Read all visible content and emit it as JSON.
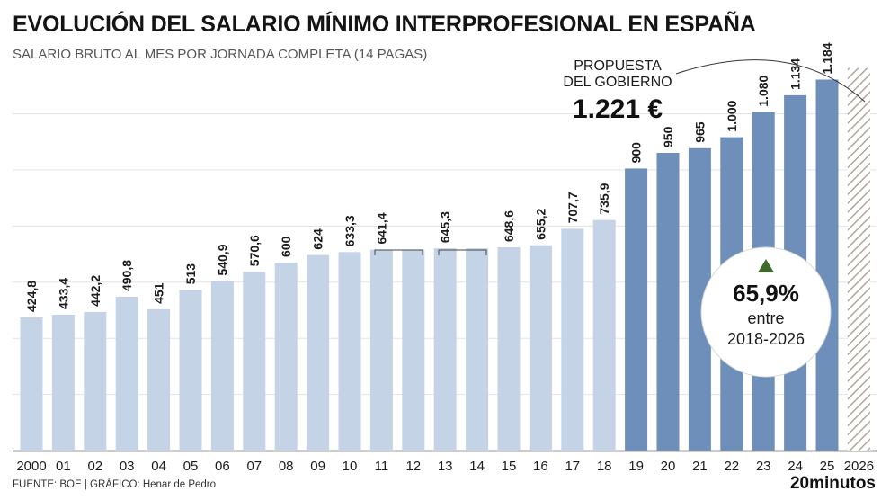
{
  "title": "EVOLUCIÓN DEL SALARIO MÍNIMO INTERPROFESIONAL EN ESPAÑA",
  "subtitle": "SALARIO BRUTO AL MES POR JORNADA COMPLETA (14 PAGAS)",
  "source": "FUENTE: BOE  |  GRÁFICO: Henar de Pedro",
  "brand": "20minutos",
  "annotation": {
    "proposal_line1": "PROPUESTA",
    "proposal_line2": "DEL GOBIERNO",
    "proposal_value": "1.221 €",
    "growth_value": "65,9%",
    "growth_line1": "entre",
    "growth_line2": "2018-2026"
  },
  "colors": {
    "light_bar": "#c5d3e6",
    "dark_bar": "#6d8fba",
    "grid": "#e3e3e3",
    "arrow_up": "#3c6b2a",
    "hatch": "#a39b8c"
  },
  "chart_data": {
    "type": "bar",
    "title": "EVOLUCIÓN DEL SALARIO MÍNIMO INTERPROFESIONAL EN ESPAÑA",
    "subtitle": "SALARIO BRUTO AL MES POR JORNADA COMPLETA (14 PAGAS)",
    "categories": [
      "2000",
      "01",
      "02",
      "03",
      "04",
      "05",
      "06",
      "07",
      "08",
      "09",
      "10",
      "11",
      "12",
      "13",
      "14",
      "15",
      "16",
      "17",
      "18",
      "19",
      "20",
      "21",
      "22",
      "23",
      "24",
      "25",
      "2026"
    ],
    "values": [
      424.8,
      433.4,
      442.2,
      490.8,
      451,
      513,
      540.9,
      570.6,
      600,
      624,
      633.3,
      641.4,
      641.4,
      645.3,
      645.3,
      648.6,
      655.2,
      707.7,
      735.9,
      900,
      950,
      965,
      1000,
      1080,
      1134,
      1184,
      1221
    ],
    "value_labels": [
      "424,8",
      "433,4",
      "442,2",
      "490,8",
      "451",
      "513",
      "540,9",
      "570,6",
      "600",
      "624",
      "633,3",
      "641,4",
      "",
      "645,3",
      "",
      "648,6",
      "655,2",
      "707,7",
      "735,9",
      "900",
      "950",
      "965",
      "1.000",
      "1.080",
      "1.134",
      "1.184",
      ""
    ],
    "highlight_from": "19",
    "projected": "2026",
    "ylim": [
      0,
      1260
    ],
    "grid": true,
    "xlabel": "",
    "ylabel": ""
  }
}
